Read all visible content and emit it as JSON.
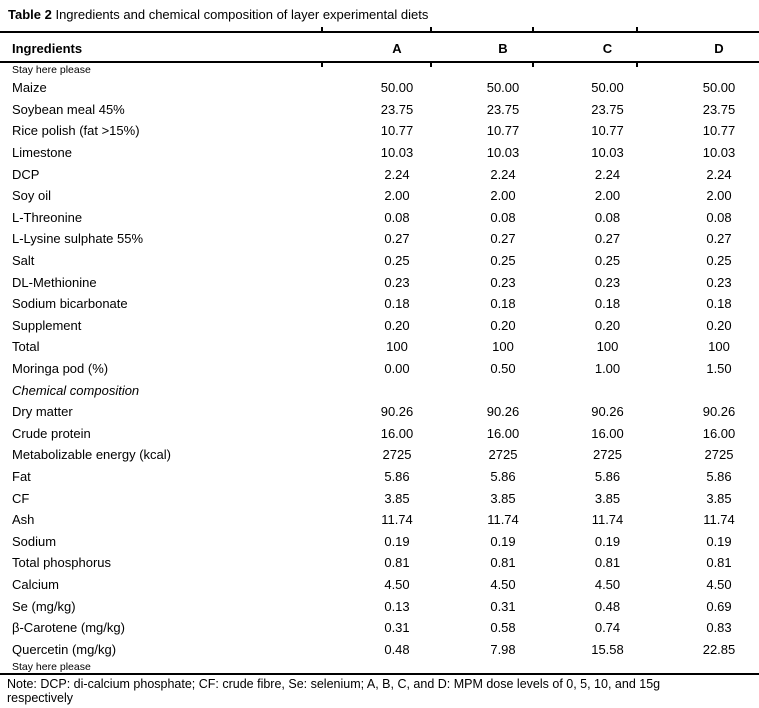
{
  "title": {
    "prefix": "Table 2",
    "rest": " Ingredients and chemical composition of layer experimental diets"
  },
  "columns": {
    "label": "Ingredients",
    "diets": [
      "A",
      "B",
      "C",
      "D"
    ]
  },
  "rows": [
    {
      "label": "Stay here please",
      "style": "small",
      "values": [
        "",
        "",
        "",
        ""
      ]
    },
    {
      "label": "Maize",
      "style": "normal",
      "values": [
        "50.00",
        "50.00",
        "50.00",
        "50.00"
      ]
    },
    {
      "label": "Soybean meal 45%",
      "style": "normal",
      "values": [
        "23.75",
        "23.75",
        "23.75",
        "23.75"
      ]
    },
    {
      "label": "Rice polish (fat >15%)",
      "style": "normal",
      "values": [
        "10.77",
        "10.77",
        "10.77",
        "10.77"
      ]
    },
    {
      "label": "Limestone",
      "style": "normal",
      "values": [
        "10.03",
        "10.03",
        "10.03",
        "10.03"
      ]
    },
    {
      "label": "DCP",
      "style": "normal",
      "values": [
        "2.24",
        "2.24",
        "2.24",
        "2.24"
      ]
    },
    {
      "label": "Soy oil",
      "style": "normal",
      "values": [
        "2.00",
        "2.00",
        "2.00",
        "2.00"
      ]
    },
    {
      "label": "L-Threonine",
      "style": "normal",
      "values": [
        "0.08",
        "0.08",
        "0.08",
        "0.08"
      ]
    },
    {
      "label": "L-Lysine sulphate 55%",
      "style": "normal",
      "values": [
        "0.27",
        "0.27",
        "0.27",
        "0.27"
      ]
    },
    {
      "label": "Salt",
      "style": "normal",
      "values": [
        "0.25",
        "0.25",
        "0.25",
        "0.25"
      ]
    },
    {
      "label": "DL-Methionine",
      "style": "normal",
      "values": [
        "0.23",
        "0.23",
        "0.23",
        "0.23"
      ]
    },
    {
      "label": "Sodium bicarbonate",
      "style": "normal",
      "values": [
        "0.18",
        "0.18",
        "0.18",
        "0.18"
      ]
    },
    {
      "label": "Supplement",
      "style": "normal",
      "values": [
        "0.20",
        "0.20",
        "0.20",
        "0.20"
      ]
    },
    {
      "label": "Total",
      "style": "normal",
      "values": [
        "100",
        "100",
        "100",
        "100"
      ]
    },
    {
      "label": "Moringa pod (%)",
      "style": "normal",
      "values": [
        "0.00",
        "0.50",
        "1.00",
        "1.50"
      ]
    },
    {
      "label": "Chemical composition",
      "style": "italic",
      "values": [
        "",
        "",
        "",
        ""
      ]
    },
    {
      "label": "Dry matter",
      "style": "normal",
      "values": [
        "90.26",
        "90.26",
        "90.26",
        "90.26"
      ]
    },
    {
      "label": "Crude protein",
      "style": "normal",
      "values": [
        "16.00",
        "16.00",
        "16.00",
        "16.00"
      ]
    },
    {
      "label": "Metabolizable energy (kcal)",
      "style": "normal",
      "values": [
        "2725",
        "2725",
        "2725",
        "2725"
      ]
    },
    {
      "label": "Fat",
      "style": "normal",
      "values": [
        "5.86",
        "5.86",
        "5.86",
        "5.86"
      ]
    },
    {
      "label": "CF",
      "style": "normal",
      "values": [
        "3.85",
        "3.85",
        "3.85",
        "3.85"
      ]
    },
    {
      "label": "Ash",
      "style": "normal",
      "values": [
        "11.74",
        "11.74",
        "11.74",
        "11.74"
      ]
    },
    {
      "label": "Sodium",
      "style": "normal",
      "values": [
        "0.19",
        "0.19",
        "0.19",
        "0.19"
      ]
    },
    {
      "label": "Total phosphorus",
      "style": "normal",
      "values": [
        "0.81",
        "0.81",
        "0.81",
        "0.81"
      ]
    },
    {
      "label": "Calcium",
      "style": "normal",
      "values": [
        "4.50",
        "4.50",
        "4.50",
        "4.50"
      ]
    },
    {
      "label": "Se (mg/kg)",
      "style": "normal",
      "values": [
        "0.13",
        "0.31",
        "0.48",
        "0.69"
      ]
    },
    {
      "label": "β-Carotene (mg/kg)",
      "style": "normal",
      "values": [
        "0.31",
        "0.58",
        "0.74",
        "0.83"
      ]
    },
    {
      "label": "Quercetin (mg/kg)",
      "style": "normal",
      "values": [
        "0.48",
        "7.98",
        "15.58",
        "22.85"
      ]
    },
    {
      "label": "Stay here please",
      "style": "small",
      "values": [
        "",
        "",
        "",
        ""
      ]
    }
  ],
  "note": {
    "lines": [
      "Note: DCP: di-calcium phosphate; CF: crude fibre, Se: selenium; A, B, C, and D: MPM dose levels of 0, 5, 10, and 15g",
      "respectively"
    ]
  },
  "layout_hints": {
    "column_tick_x": [
      321,
      430,
      532,
      636
    ]
  },
  "colors": {
    "text": "#000000",
    "rule": "#000000",
    "background": "#ffffff"
  }
}
